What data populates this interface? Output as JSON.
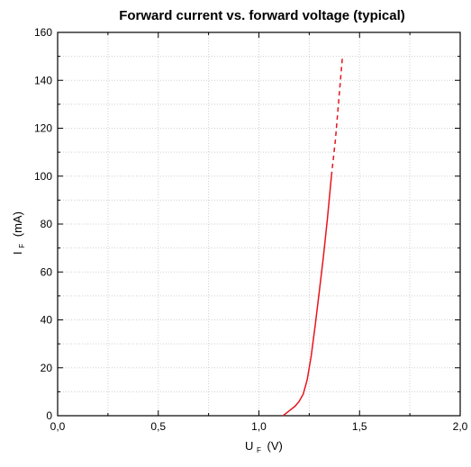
{
  "chart_data": {
    "type": "line",
    "title": "Forward current vs. forward voltage (typical)",
    "xlabel": {
      "main": "U",
      "sub": "F",
      "unit": "(V)"
    },
    "ylabel": {
      "main": "I",
      "sub": "F",
      "unit": "(mA)"
    },
    "xlim": [
      0.0,
      2.0
    ],
    "ylim": [
      0,
      160
    ],
    "x_ticks": [
      {
        "value": 0.0,
        "label": "0,0"
      },
      {
        "value": 0.5,
        "label": "0,5"
      },
      {
        "value": 1.0,
        "label": "1,0"
      },
      {
        "value": 1.5,
        "label": "1,5"
      },
      {
        "value": 2.0,
        "label": "2,0"
      }
    ],
    "y_ticks": [
      {
        "value": 0,
        "label": "0"
      },
      {
        "value": 20,
        "label": "20"
      },
      {
        "value": 40,
        "label": "40"
      },
      {
        "value": 60,
        "label": "60"
      },
      {
        "value": 80,
        "label": "80"
      },
      {
        "value": 100,
        "label": "100"
      },
      {
        "value": 120,
        "label": "120"
      },
      {
        "value": 140,
        "label": "140"
      },
      {
        "value": 160,
        "label": "160"
      }
    ],
    "grid": true,
    "series": [
      {
        "style": "solid",
        "color": "#e8141c",
        "x": [
          1.12,
          1.15,
          1.18,
          1.2,
          1.22,
          1.24,
          1.26,
          1.28,
          1.3,
          1.32,
          1.34,
          1.36
        ],
        "y": [
          0,
          2,
          4,
          6,
          9,
          15,
          25,
          38,
          52,
          66,
          82,
          100
        ]
      },
      {
        "style": "dashed",
        "color": "#e8141c",
        "x": [
          1.36,
          1.38,
          1.4,
          1.415
        ],
        "y": [
          100,
          115,
          135,
          150
        ]
      }
    ]
  }
}
